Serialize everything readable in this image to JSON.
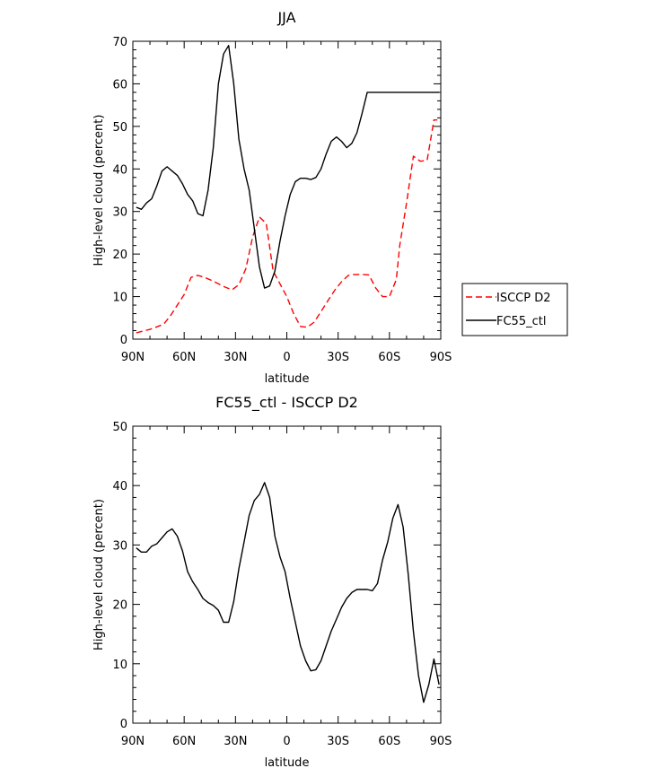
{
  "chart_data": [
    {
      "type": "line",
      "title": "JJA",
      "xlabel": "latitude",
      "ylabel": "High-level cloud (percent)",
      "xlim": [
        90,
        -90
      ],
      "ylim": [
        0,
        70
      ],
      "x_ticks": [
        90,
        60,
        30,
        0,
        -30,
        -60,
        -90
      ],
      "x_tick_labels": [
        "90N",
        "60N",
        "30N",
        "0",
        "30S",
        "60S",
        "90S"
      ],
      "y_ticks": [
        0,
        10,
        20,
        30,
        40,
        50,
        60,
        70
      ],
      "y_tick_labels": [
        "0",
        "10",
        "20",
        "30",
        "40",
        "50",
        "60",
        "70"
      ],
      "legend": "outside-right",
      "grid": false,
      "series": [
        {
          "name": "ISCCP D2",
          "color": "#ff0000",
          "style": "dashed",
          "x": [
            88,
            80,
            72,
            68,
            64,
            60,
            56,
            52,
            48,
            44,
            40,
            36,
            32,
            28,
            24,
            20,
            16,
            12,
            8,
            4,
            0,
            -4,
            -8,
            -12,
            -16,
            -20,
            -24,
            -28,
            -32,
            -36,
            -40,
            -44,
            -48,
            -52,
            -56,
            -60,
            -64,
            -66,
            -70,
            -74,
            -78,
            -82,
            -86,
            -88
          ],
          "y": [
            1.5,
            2.3,
            3.5,
            5.5,
            8.0,
            10.5,
            14.5,
            15.0,
            14.5,
            13.8,
            13.0,
            12.2,
            11.6,
            12.8,
            16.5,
            24.0,
            28.7,
            27.2,
            16.0,
            13.0,
            10.0,
            6.0,
            3.0,
            2.8,
            4.0,
            6.5,
            9.0,
            11.5,
            13.5,
            15.0,
            15.2,
            15.2,
            15.1,
            12.0,
            10.0,
            10.0,
            14.0,
            22.0,
            32.0,
            43.0,
            41.8,
            42.0,
            51.5,
            51.5
          ]
        },
        {
          "name": "FC55_ctl",
          "color": "#000000",
          "style": "solid",
          "x": [
            88,
            85,
            82,
            79,
            76,
            73,
            70,
            67,
            64,
            61,
            58,
            55,
            52,
            49,
            46,
            43,
            40,
            37,
            34,
            31,
            28,
            25,
            22,
            19,
            16,
            13,
            10,
            7,
            4,
            1,
            -2,
            -5,
            -8,
            -11,
            -14,
            -17,
            -20,
            -23,
            -26,
            -29,
            -32,
            -35,
            -38,
            -41,
            -44,
            -47,
            -50,
            -53,
            -56,
            -59,
            -62,
            -65,
            -68,
            -71,
            -74,
            -77,
            -80,
            -83,
            -86,
            -89
          ],
          "y": [
            31,
            30.5,
            32,
            33,
            36,
            39.5,
            40.5,
            39.5,
            38.5,
            36.5,
            34,
            32.5,
            29.5,
            29,
            35,
            45,
            60,
            67,
            69,
            60,
            47,
            40,
            35,
            26,
            17,
            12,
            12.5,
            16,
            23,
            29,
            34,
            37,
            37.8,
            37.8,
            37.5,
            38,
            40,
            43.5,
            46.5,
            47.5,
            46.5,
            45,
            46,
            48.5,
            53,
            58,
            58,
            58,
            58,
            58,
            58,
            58,
            58,
            58,
            58,
            58,
            58,
            58,
            58,
            58
          ]
        }
      ]
    },
    {
      "type": "line",
      "title": "FC55_ctl - ISCCP D2",
      "xlabel": "latitude",
      "ylabel": "High-level cloud (percent)",
      "xlim": [
        90,
        -90
      ],
      "ylim": [
        0,
        50
      ],
      "x_ticks": [
        90,
        60,
        30,
        0,
        -30,
        -60,
        -90
      ],
      "x_tick_labels": [
        "90N",
        "60N",
        "30N",
        "0",
        "30S",
        "60S",
        "90S"
      ],
      "y_ticks": [
        0,
        10,
        20,
        30,
        40,
        50
      ],
      "y_tick_labels": [
        "0",
        "10",
        "20",
        "30",
        "40",
        "50"
      ],
      "grid": false,
      "series": [
        {
          "color": "#000000",
          "style": "solid",
          "x": [
            88,
            85,
            82,
            79,
            76,
            73,
            70,
            67,
            64,
            61,
            58,
            55,
            52,
            49,
            46,
            43,
            40,
            37,
            34,
            31,
            28,
            25,
            22,
            19,
            16,
            13,
            10,
            7,
            4,
            1,
            -2,
            -5,
            -8,
            -11,
            -14,
            -17,
            -20,
            -23,
            -26,
            -29,
            -32,
            -35,
            -38,
            -41,
            -44,
            -47,
            -50,
            -53,
            -56,
            -59,
            -62,
            -65,
            -68,
            -71,
            -74,
            -77,
            -80,
            -83,
            -86,
            -89
          ],
          "y": [
            29.5,
            28.8,
            28.8,
            29.8,
            30.2,
            31.2,
            32.2,
            32.7,
            31.5,
            29,
            25.5,
            23.8,
            22.5,
            21,
            20.3,
            19.8,
            19,
            17,
            17,
            20.5,
            26,
            30.5,
            35,
            37.5,
            38.5,
            40.5,
            38,
            31.5,
            28,
            25.5,
            21,
            17,
            13,
            10.5,
            8.8,
            9,
            10.5,
            13,
            15.5,
            17.5,
            19.5,
            21,
            22,
            22.5,
            22.5,
            22.5,
            22.3,
            23.5,
            27.5,
            30.5,
            34.5,
            36.8,
            33,
            25,
            15.5,
            8,
            3.5,
            6.5,
            10.8,
            6.5
          ]
        }
      ]
    }
  ]
}
